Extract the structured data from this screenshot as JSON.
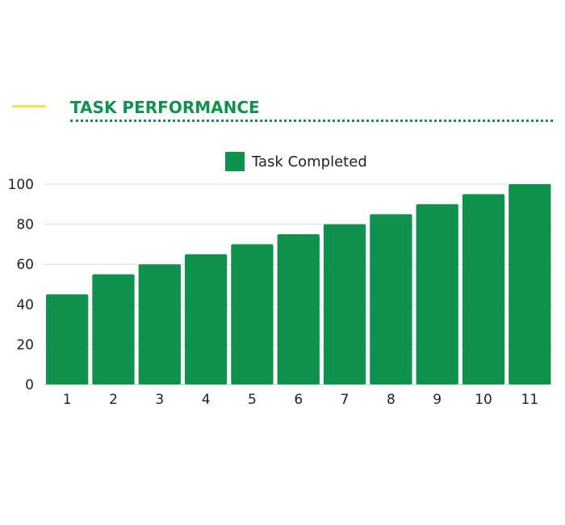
{
  "header": {
    "title": "TASK PERFORMANCE"
  },
  "colors": {
    "bar": "#10924f",
    "accent": "#fde047",
    "grid": "#dddddd"
  },
  "chart_data": {
    "type": "bar",
    "title": "",
    "xlabel": "",
    "ylabel": "",
    "categories": [
      "1",
      "2",
      "3",
      "4",
      "5",
      "6",
      "7",
      "8",
      "9",
      "10",
      "11"
    ],
    "series": [
      {
        "name": "Task Completed",
        "values": [
          45,
          55,
          60,
          65,
          70,
          75,
          80,
          85,
          90,
          95,
          100
        ]
      }
    ],
    "ylim": [
      0,
      100
    ],
    "yticks": [
      0,
      20,
      40,
      60,
      80,
      100
    ],
    "grid": true,
    "legend": "top-center"
  }
}
